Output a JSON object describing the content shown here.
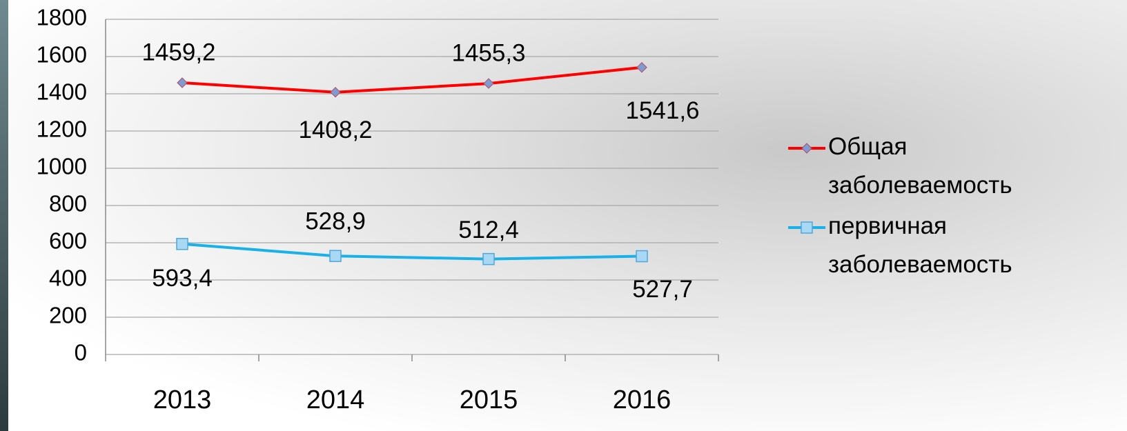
{
  "chart_data": {
    "type": "line",
    "categories": [
      "2013",
      "2014",
      "2015",
      "2016"
    ],
    "series": [
      {
        "name": "Общая заболеваемость",
        "color": "#ff0000",
        "marker": "diamond",
        "values": [
          1459.2,
          1408.2,
          1455.3,
          1541.6
        ],
        "value_labels": [
          "1459,2",
          "1408,2",
          "1455,3",
          "1541,6"
        ]
      },
      {
        "name": "первичная заболеваемость",
        "color": "#1ab0e8",
        "marker": "square",
        "values": [
          593.4,
          528.9,
          512.4,
          527.7
        ],
        "value_labels": [
          "593,4",
          "528,9",
          "512,4",
          "527,7"
        ]
      }
    ],
    "ylim": [
      0,
      1800
    ],
    "yticks": [
      0,
      200,
      400,
      600,
      800,
      1000,
      1200,
      1400,
      1600,
      1800
    ],
    "grid": true,
    "legend": "right"
  }
}
